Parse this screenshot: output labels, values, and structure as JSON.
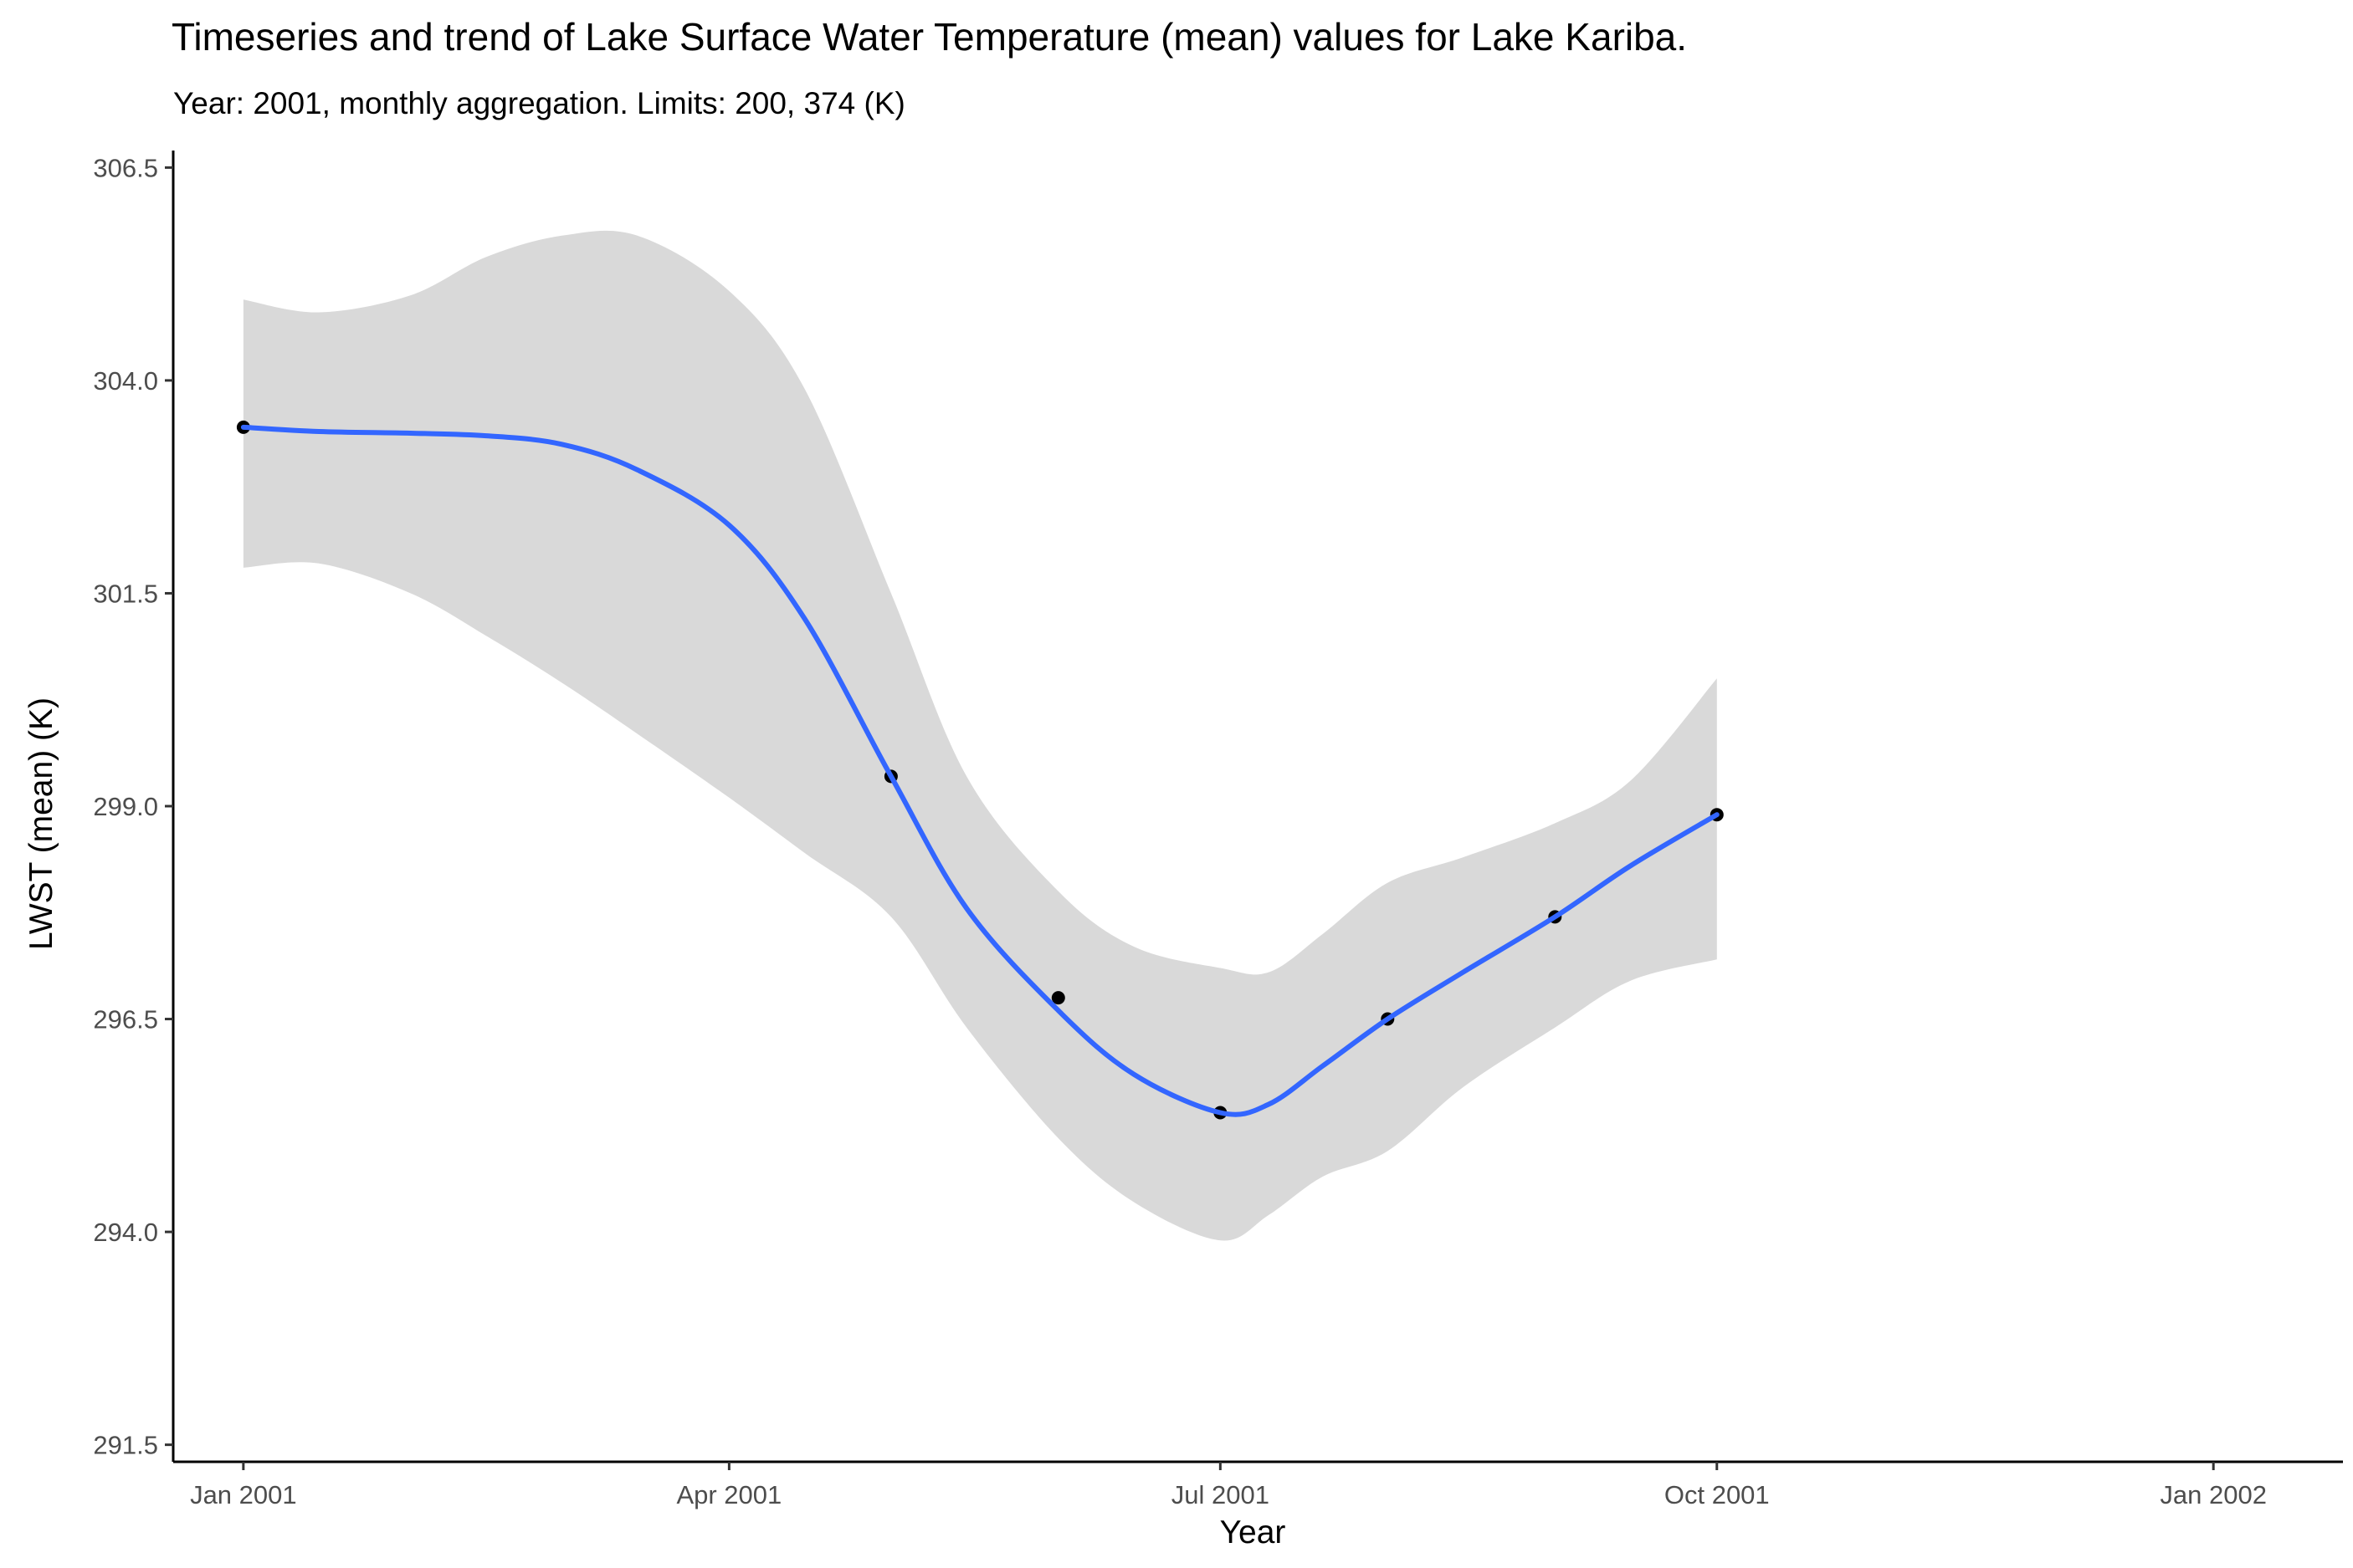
{
  "chart_data": {
    "type": "line",
    "title": "Timeseries and trend of Lake Surface Water Temperature (mean) values for Lake Kariba.",
    "subtitle": "Year: 2001, monthly aggregation. Limits: 200, 374 (K)",
    "xlabel": "Year",
    "ylabel": "LWST (mean) (K)",
    "x_ticks": [
      "Jan 2001",
      "Apr 2001",
      "Jul 2001",
      "Oct 2001",
      "Jan 2002"
    ],
    "y_ticks": [
      "291.5",
      "294.0",
      "296.5",
      "299.0",
      "301.5",
      "304.0",
      "306.5"
    ],
    "xlim": [
      "2000-12-19",
      "2002-01-25"
    ],
    "ylim": [
      291.3,
      306.7
    ],
    "grid": false,
    "series": [
      {
        "points": [
          {
            "x": "2001-01-01",
            "y": 303.45
          },
          {
            "x": "2001-05-01",
            "y": 299.35
          },
          {
            "x": "2001-06-01",
            "y": 296.75
          },
          {
            "x": "2001-07-01",
            "y": 295.4
          },
          {
            "x": "2001-08-01",
            "y": 296.5
          },
          {
            "x": "2001-09-01",
            "y": 297.7
          },
          {
            "x": "2001-10-01",
            "y": 298.9
          }
        ]
      }
    ],
    "trend": {
      "method": "smooth",
      "color": "#3366FF",
      "points": [
        {
          "x": "2001-01-01",
          "y": 303.45
        },
        {
          "x": "2001-01-15",
          "y": 303.4
        },
        {
          "x": "2001-02-01",
          "y": 303.38
        },
        {
          "x": "2001-02-15",
          "y": 303.35
        },
        {
          "x": "2001-03-01",
          "y": 303.25
        },
        {
          "x": "2001-03-15",
          "y": 302.95
        },
        {
          "x": "2001-04-01",
          "y": 302.3
        },
        {
          "x": "2001-04-15",
          "y": 301.2
        },
        {
          "x": "2001-05-01",
          "y": 299.35
        },
        {
          "x": "2001-05-15",
          "y": 297.8
        },
        {
          "x": "2001-06-01",
          "y": 296.6
        },
        {
          "x": "2001-06-15",
          "y": 295.85
        },
        {
          "x": "2001-07-01",
          "y": 295.4
        },
        {
          "x": "2001-07-10",
          "y": 295.5
        },
        {
          "x": "2001-07-20",
          "y": 295.95
        },
        {
          "x": "2001-08-01",
          "y": 296.5
        },
        {
          "x": "2001-08-15",
          "y": 297.05
        },
        {
          "x": "2001-09-01",
          "y": 297.7
        },
        {
          "x": "2001-09-15",
          "y": 298.3
        },
        {
          "x": "2001-10-01",
          "y": 298.9
        }
      ]
    },
    "confidence_band": {
      "color": "#d9d9d9",
      "points": [
        {
          "x": "2001-01-01",
          "lower": 301.8,
          "upper": 304.95
        },
        {
          "x": "2001-01-15",
          "lower": 301.85,
          "upper": 304.8
        },
        {
          "x": "2001-02-01",
          "lower": 301.5,
          "upper": 305.0
        },
        {
          "x": "2001-02-15",
          "lower": 301.0,
          "upper": 305.45
        },
        {
          "x": "2001-03-01",
          "lower": 300.45,
          "upper": 305.7
        },
        {
          "x": "2001-03-15",
          "lower": 299.85,
          "upper": 305.7
        },
        {
          "x": "2001-04-01",
          "lower": 299.1,
          "upper": 305.05
        },
        {
          "x": "2001-04-15",
          "lower": 298.45,
          "upper": 303.9
        },
        {
          "x": "2001-05-01",
          "lower": 297.7,
          "upper": 301.5
        },
        {
          "x": "2001-05-15",
          "lower": 296.4,
          "upper": 299.35
        },
        {
          "x": "2001-06-01",
          "lower": 295.1,
          "upper": 298.0
        },
        {
          "x": "2001-06-15",
          "lower": 294.35,
          "upper": 297.35
        },
        {
          "x": "2001-07-01",
          "lower": 293.9,
          "upper": 297.1
        },
        {
          "x": "2001-07-10",
          "lower": 294.2,
          "upper": 297.05
        },
        {
          "x": "2001-07-20",
          "lower": 294.65,
          "upper": 297.5
        },
        {
          "x": "2001-08-01",
          "lower": 294.95,
          "upper": 298.1
        },
        {
          "x": "2001-08-15",
          "lower": 295.7,
          "upper": 298.4
        },
        {
          "x": "2001-09-01",
          "lower": 296.4,
          "upper": 298.8
        },
        {
          "x": "2001-09-15",
          "lower": 296.95,
          "upper": 299.3
        },
        {
          "x": "2001-10-01",
          "lower": 297.2,
          "upper": 300.5
        }
      ]
    },
    "point_color": "#000000"
  }
}
